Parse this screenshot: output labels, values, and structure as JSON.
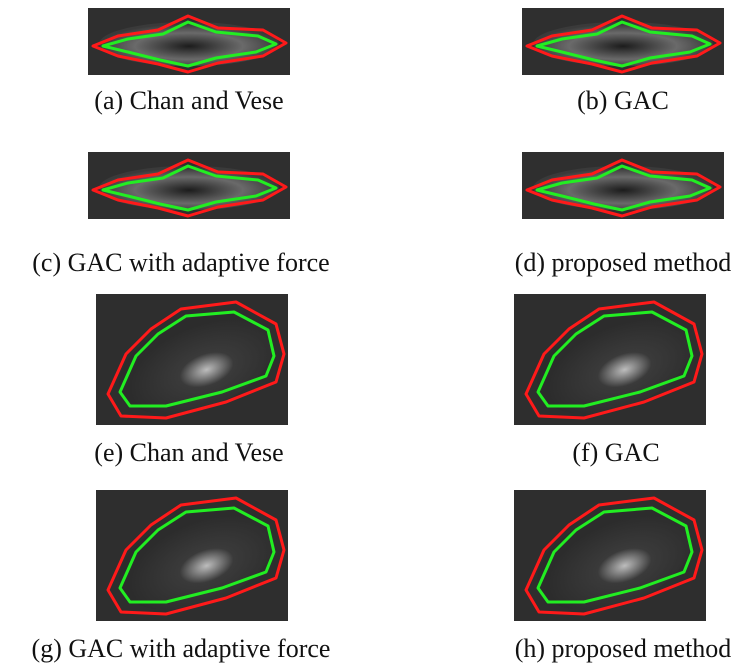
{
  "figures": [
    {
      "caption": "(a) Chan and Vese"
    },
    {
      "caption": "(b) GAC"
    },
    {
      "caption": "(c) GAC with adaptive force"
    },
    {
      "caption": "(d) proposed method"
    },
    {
      "caption": "(e) Chan and Vese"
    },
    {
      "caption": "(f) GAC"
    },
    {
      "caption": "(g) GAC with adaptive force"
    },
    {
      "caption": "(h) proposed method"
    }
  ]
}
